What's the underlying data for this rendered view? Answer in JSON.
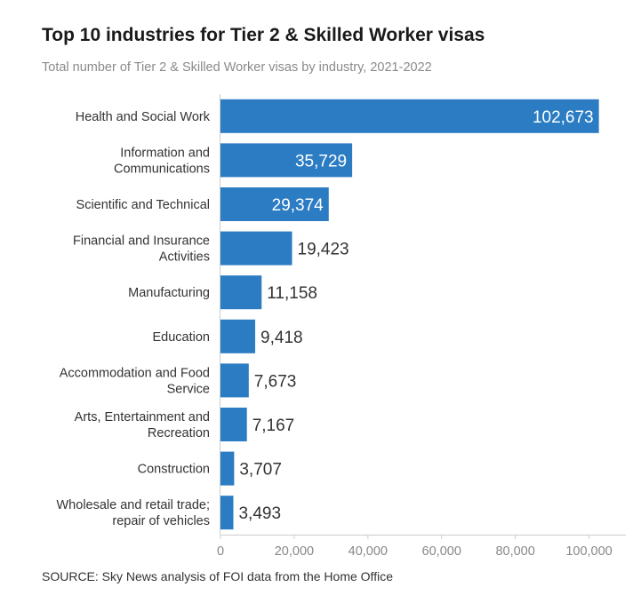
{
  "chart_data": {
    "type": "bar",
    "orientation": "horizontal",
    "title": "Top 10 industries for Tier 2 & Skilled Worker visas",
    "subtitle": "Total number of Tier 2 & Skilled Worker visas by industry, 2021-2022",
    "categories": [
      [
        "Health and Social Work"
      ],
      [
        "Information and",
        "Communications"
      ],
      [
        "Scientific and Technical"
      ],
      [
        "Financial and Insurance",
        "Activities"
      ],
      [
        "Manufacturing"
      ],
      [
        "Education"
      ],
      [
        "Accommodation and Food",
        "Service"
      ],
      [
        "Arts, Entertainment and",
        "Recreation"
      ],
      [
        "Construction"
      ],
      [
        "Wholesale and retail trade;",
        "repair of vehicles"
      ]
    ],
    "values": [
      102673,
      35729,
      29374,
      19423,
      11158,
      9418,
      7673,
      7167,
      3707,
      3493
    ],
    "value_labels": [
      "102,673",
      "35,729",
      "29,374",
      "19,423",
      "11,158",
      "9,418",
      "7,673",
      "7,167",
      "3,707",
      "3,493"
    ],
    "xlim": [
      0,
      110000
    ],
    "xticks": [
      0,
      20000,
      40000,
      60000,
      80000,
      100000
    ],
    "xtick_labels": [
      "0",
      "20,000",
      "40,000",
      "60,000",
      "80,000",
      "100,000"
    ],
    "xlabel": "",
    "ylabel": "",
    "grid": false,
    "bar_color": "#2b7cc3",
    "label_inside_color": "#ffffff",
    "label_outside_color": "#333333",
    "axis_color": "#cccccc",
    "source": "SOURCE: Sky News analysis of FOI data from the Home Office"
  }
}
